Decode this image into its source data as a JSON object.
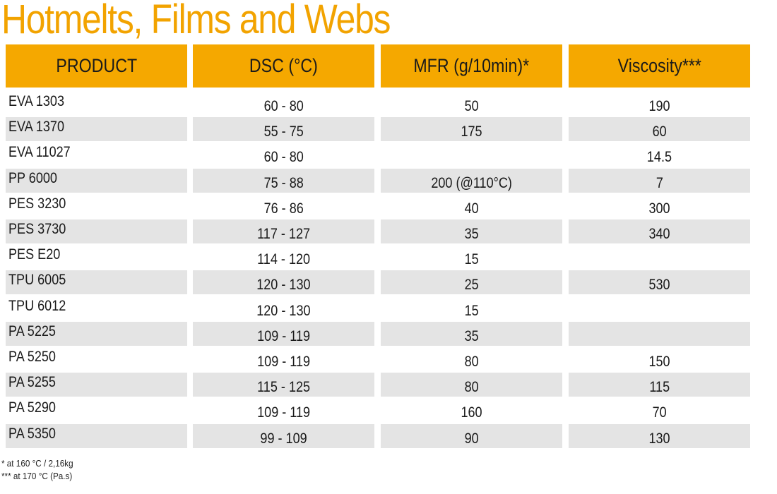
{
  "title": "Hotmelts, Films and Webs",
  "colors": {
    "accent": "#f5a800",
    "title": "#f2a300",
    "row_shade": "#e4e4e4"
  },
  "headers": [
    "PRODUCT",
    "DSC (°C)",
    "MFR (g/10min)*",
    "Viscosity***"
  ],
  "rows": [
    [
      "EVA 1303",
      "60 - 80",
      "50",
      "190"
    ],
    [
      "EVA 1370",
      "55 - 75",
      "175",
      "60"
    ],
    [
      "EVA 11027",
      "60 - 80",
      "",
      "14.5"
    ],
    [
      "PP 6000",
      "75 - 88",
      "200 (@110°C)",
      "7"
    ],
    [
      "PES 3230",
      "76 - 86",
      "40",
      "300"
    ],
    [
      "PES 3730",
      "117 - 127",
      "35",
      "340"
    ],
    [
      "PES E20",
      "114 - 120",
      "15",
      ""
    ],
    [
      "TPU 6005",
      "120 - 130",
      "25",
      "530"
    ],
    [
      "TPU 6012",
      "120 - 130",
      "15",
      ""
    ],
    [
      "PA 5225",
      "109 - 119",
      "35",
      ""
    ],
    [
      "PA 5250",
      "109 - 119",
      "80",
      "150"
    ],
    [
      "PA 5255",
      "115 - 125",
      "80",
      "115"
    ],
    [
      "PA 5290",
      "109 - 119",
      "160",
      "70"
    ],
    [
      "PA 5350",
      "99 - 109",
      "90",
      "130"
    ]
  ],
  "footnotes": [
    "* at 160 °C / 2,16kg",
    "*** at 170 °C (Pa.s)"
  ]
}
